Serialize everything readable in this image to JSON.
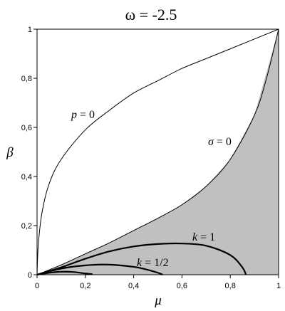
{
  "chart_data": {
    "type": "line",
    "title": "ω = -2.5",
    "xlabel": "μ",
    "ylabel": "β",
    "xlim": [
      0,
      1
    ],
    "ylim": [
      0,
      1
    ],
    "grid": false,
    "x_ticks": [
      "0",
      "0,2",
      "0,4",
      "0,6",
      "0,8",
      "1"
    ],
    "y_ticks": [
      "0",
      "0,2",
      "0,4",
      "0,6",
      "0,8",
      "1"
    ],
    "colors": {
      "shaded_region": "#c0c0c0",
      "curves": "#000000"
    },
    "shaded_region": {
      "upper_boundary": "σ = 0",
      "lower_boundary": "β = 0",
      "x": [
        0,
        0.1,
        0.2,
        0.3,
        0.4,
        0.5,
        0.6,
        0.7,
        0.8,
        0.9,
        1.0
      ],
      "y_upper": [
        0,
        0.04,
        0.085,
        0.13,
        0.18,
        0.23,
        0.285,
        0.36,
        0.47,
        0.65,
        1.0
      ]
    },
    "series": [
      {
        "name": "p = 0",
        "x": [
          0.0,
          0.005,
          0.02,
          0.05,
          0.1,
          0.2,
          0.3,
          0.4,
          0.5,
          0.6,
          0.7,
          0.8,
          0.9,
          1.0
        ],
        "y": [
          0.0,
          0.12,
          0.25,
          0.37,
          0.47,
          0.59,
          0.67,
          0.74,
          0.79,
          0.84,
          0.88,
          0.92,
          0.96,
          1.0
        ],
        "label_text": {
          "var": "p",
          "rest": " = 0"
        }
      },
      {
        "name": "σ = 0",
        "x": [
          0,
          0.1,
          0.2,
          0.3,
          0.4,
          0.5,
          0.6,
          0.7,
          0.8,
          0.9,
          0.95,
          1.0
        ],
        "y": [
          0,
          0.04,
          0.085,
          0.13,
          0.18,
          0.23,
          0.285,
          0.36,
          0.47,
          0.65,
          0.8,
          1.0
        ],
        "label_text": {
          "var": "σ",
          "rest": " = 0"
        }
      },
      {
        "name": "k = 1",
        "bold": true,
        "x": [
          0.0,
          0.1,
          0.2,
          0.3,
          0.4,
          0.5,
          0.6,
          0.7,
          0.8,
          0.85,
          0.865
        ],
        "y": [
          0.0,
          0.03,
          0.065,
          0.095,
          0.115,
          0.125,
          0.127,
          0.118,
          0.08,
          0.03,
          0.0
        ],
        "label_text": {
          "var": "k",
          "rest": " = 1"
        }
      },
      {
        "name": "k = 1/2",
        "bold": true,
        "x": [
          0.0,
          0.1,
          0.2,
          0.3,
          0.4,
          0.45,
          0.5,
          0.52
        ],
        "y": [
          0.0,
          0.025,
          0.038,
          0.041,
          0.032,
          0.022,
          0.008,
          0.0
        ],
        "label_text": {
          "var": "k",
          "rest": " = 1/2"
        }
      },
      {
        "name": "",
        "bold": true,
        "x": [
          0.0,
          0.05,
          0.1,
          0.15,
          0.2,
          0.23
        ],
        "y": [
          0.0,
          0.008,
          0.012,
          0.011,
          0.005,
          0.002
        ]
      }
    ]
  }
}
